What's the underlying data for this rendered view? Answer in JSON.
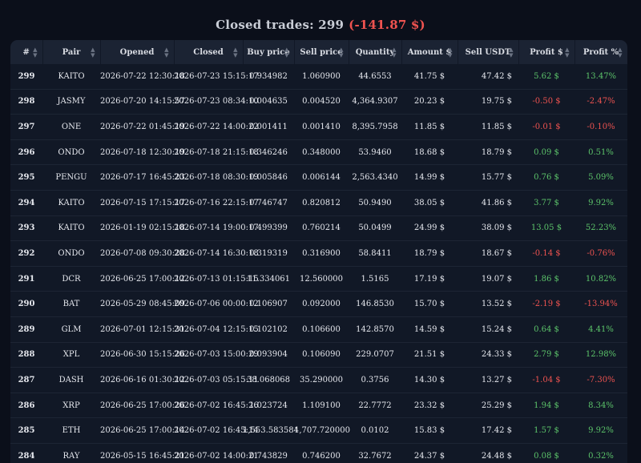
{
  "header": {
    "title_prefix": "Closed trades: 299",
    "total_profit": "(-141.87 $)"
  },
  "colors": {
    "positive": "#5cc46a",
    "negative": "#ef5350",
    "background": "#0b0f1a"
  },
  "columns": [
    "#",
    "Pair",
    "Opened",
    "Closed",
    "Buy price",
    "Sell price",
    "Quantity",
    "Amount $",
    "Sell USDT",
    "Profit $",
    "Profit %"
  ],
  "sort_icon": "sort-arrows-icon",
  "rows": [
    {
      "id": "299",
      "pair": "KAITO",
      "opened": "2026-07-22 12:30:18",
      "closed": "2026-07-23 15:15:17",
      "buy": "0.934982",
      "sell": "1.060900",
      "qty": "44.6553",
      "amount": "41.75 $",
      "sell_usdt": "47.42 $",
      "profit": "5.62 $",
      "profit_pct": "13.47%",
      "sign": "pos"
    },
    {
      "id": "298",
      "pair": "JASMY",
      "opened": "2026-07-20 14:15:57",
      "closed": "2026-07-23 08:34:10",
      "buy": "0.004635",
      "sell": "0.004520",
      "qty": "4,364.9307",
      "amount": "20.23 $",
      "sell_usdt": "19.75 $",
      "profit": "-0.50 $",
      "profit_pct": "-2.47%",
      "sign": "neg"
    },
    {
      "id": "297",
      "pair": "ONE",
      "opened": "2026-07-22 01:45:19",
      "closed": "2026-07-22 14:00:22",
      "buy": "0.001411",
      "sell": "0.001410",
      "qty": "8,395.7958",
      "amount": "11.85 $",
      "sell_usdt": "11.85 $",
      "profit": "-0.01 $",
      "profit_pct": "-0.10%",
      "sign": "neg"
    },
    {
      "id": "296",
      "pair": "ONDO",
      "opened": "2026-07-18 12:30:19",
      "closed": "2026-07-18 21:15:18",
      "buy": "0.346246",
      "sell": "0.348000",
      "qty": "53.9460",
      "amount": "18.68 $",
      "sell_usdt": "18.79 $",
      "profit": "0.09 $",
      "profit_pct": "0.51%",
      "sign": "pos"
    },
    {
      "id": "295",
      "pair": "PENGU",
      "opened": "2026-07-17 16:45:23",
      "closed": "2026-07-18 08:30:19",
      "buy": "0.005846",
      "sell": "0.006144",
      "qty": "2,563.4340",
      "amount": "14.99 $",
      "sell_usdt": "15.77 $",
      "profit": "0.76 $",
      "profit_pct": "5.09%",
      "sign": "pos"
    },
    {
      "id": "294",
      "pair": "KAITO",
      "opened": "2026-07-15 17:15:17",
      "closed": "2026-07-16 22:15:17",
      "buy": "0.746747",
      "sell": "0.820812",
      "qty": "50.9490",
      "amount": "38.05 $",
      "sell_usdt": "41.86 $",
      "profit": "3.77 $",
      "profit_pct": "9.92%",
      "sign": "pos"
    },
    {
      "id": "293",
      "pair": "KAITO",
      "opened": "2026-01-19 02:15:18",
      "closed": "2026-07-14 19:00:17",
      "buy": "0.499399",
      "sell": "0.760214",
      "qty": "50.0499",
      "amount": "24.99 $",
      "sell_usdt": "38.09 $",
      "profit": "13.05 $",
      "profit_pct": "52.23%",
      "sign": "pos"
    },
    {
      "id": "292",
      "pair": "ONDO",
      "opened": "2026-07-08 09:30:28",
      "closed": "2026-07-14 16:30:18",
      "buy": "0.319319",
      "sell": "0.316900",
      "qty": "58.8411",
      "amount": "18.79 $",
      "sell_usdt": "18.67 $",
      "profit": "-0.14 $",
      "profit_pct": "-0.76%",
      "sign": "neg"
    },
    {
      "id": "291",
      "pair": "DCR",
      "opened": "2026-06-25 17:00:12",
      "closed": "2026-07-13 01:15:15",
      "buy": "11.334061",
      "sell": "12.560000",
      "qty": "1.5165",
      "amount": "17.19 $",
      "sell_usdt": "19.07 $",
      "profit": "1.86 $",
      "profit_pct": "10.82%",
      "sign": "pos"
    },
    {
      "id": "290",
      "pair": "BAT",
      "opened": "2026-05-29 08:45:09",
      "closed": "2026-07-06 00:00:12",
      "buy": "0.106907",
      "sell": "0.092000",
      "qty": "146.8530",
      "amount": "15.70 $",
      "sell_usdt": "13.52 $",
      "profit": "-2.19 $",
      "profit_pct": "-13.94%",
      "sign": "neg"
    },
    {
      "id": "289",
      "pair": "GLM",
      "opened": "2026-07-01 12:15:31",
      "closed": "2026-07-04 12:15:15",
      "buy": "0.102102",
      "sell": "0.106600",
      "qty": "142.8570",
      "amount": "14.59 $",
      "sell_usdt": "15.24 $",
      "profit": "0.64 $",
      "profit_pct": "4.41%",
      "sign": "pos"
    },
    {
      "id": "288",
      "pair": "XPL",
      "opened": "2026-06-30 15:15:26",
      "closed": "2026-07-03 15:00:29",
      "buy": "0.093904",
      "sell": "0.106090",
      "qty": "229.0707",
      "amount": "21.51 $",
      "sell_usdt": "24.33 $",
      "profit": "2.79 $",
      "profit_pct": "12.98%",
      "sign": "pos"
    },
    {
      "id": "287",
      "pair": "DASH",
      "opened": "2026-06-16 01:30:12",
      "closed": "2026-07-03 05:15:11",
      "buy": "38.068068",
      "sell": "35.290000",
      "qty": "0.3756",
      "amount": "14.30 $",
      "sell_usdt": "13.27 $",
      "profit": "-1.04 $",
      "profit_pct": "-7.30%",
      "sign": "neg"
    },
    {
      "id": "286",
      "pair": "XRP",
      "opened": "2026-06-25 17:00:26",
      "closed": "2026-07-02 16:45:26",
      "buy": "1.023724",
      "sell": "1.109100",
      "qty": "22.7772",
      "amount": "23.32 $",
      "sell_usdt": "25.29 $",
      "profit": "1.94 $",
      "profit_pct": "8.34%",
      "sign": "pos"
    },
    {
      "id": "285",
      "pair": "ETH",
      "opened": "2026-06-25 17:00:14",
      "closed": "2026-07-02 16:45:14",
      "buy": "1,553.583584",
      "sell": "1,707.720000",
      "qty": "0.0102",
      "amount": "15.83 $",
      "sell_usdt": "17.42 $",
      "profit": "1.57 $",
      "profit_pct": "9.92%",
      "sign": "pos"
    },
    {
      "id": "284",
      "pair": "RAY",
      "opened": "2026-05-15 16:45:21",
      "closed": "2026-07-02 14:00:21",
      "buy": "0.743829",
      "sell": "0.746200",
      "qty": "32.7672",
      "amount": "24.37 $",
      "sell_usdt": "24.48 $",
      "profit": "0.08 $",
      "profit_pct": "0.32%",
      "sign": "pos"
    }
  ]
}
